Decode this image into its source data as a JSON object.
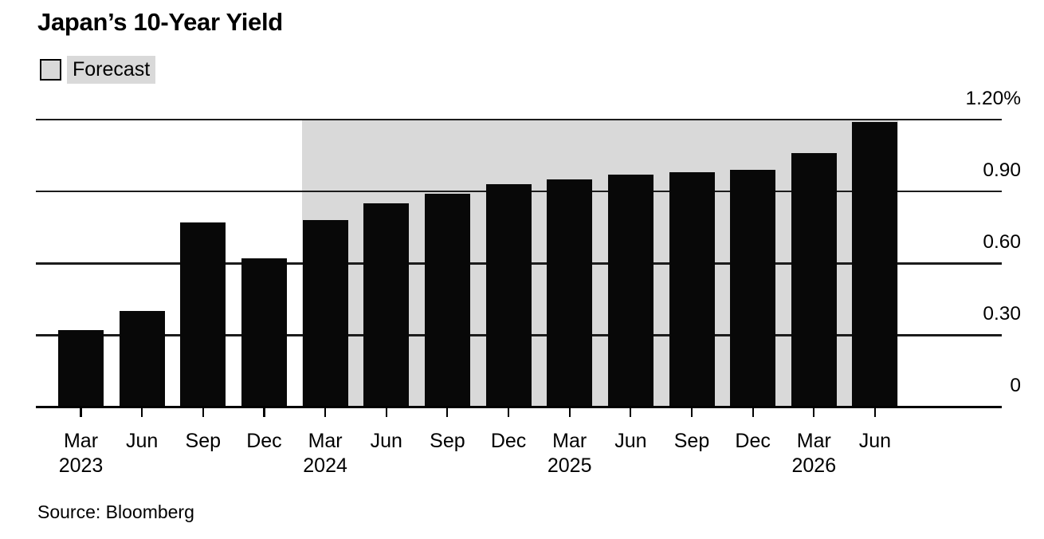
{
  "header": {
    "title": "Japan’s 10-Year Yield"
  },
  "legend": {
    "label": "Forecast",
    "swatch_color": "#d9d9d9"
  },
  "footer": {
    "source": "Source: Bloomberg"
  },
  "chart_data": {
    "type": "bar",
    "title": "Japan’s 10-Year Yield",
    "unit": "%",
    "categories": [
      "Mar 2023",
      "Jun 2023",
      "Sep 2023",
      "Dec 2023",
      "Mar 2024",
      "Jun 2024",
      "Sep 2024",
      "Dec 2024",
      "Mar 2025",
      "Jun 2025",
      "Sep 2025",
      "Dec 2025",
      "Mar 2026",
      "Jun 2026"
    ],
    "month_labels": [
      "Mar",
      "Jun",
      "Sep",
      "Dec",
      "Mar",
      "Jun",
      "Sep",
      "Dec",
      "Mar",
      "Jun",
      "Sep",
      "Dec",
      "Mar",
      "Jun"
    ],
    "year_labels": [
      {
        "at_index": 0,
        "label": "2023"
      },
      {
        "at_index": 4,
        "label": "2024"
      },
      {
        "at_index": 8,
        "label": "2025"
      },
      {
        "at_index": 12,
        "label": "2026"
      }
    ],
    "values": [
      0.32,
      0.4,
      0.77,
      0.62,
      0.78,
      0.85,
      0.89,
      0.93,
      0.95,
      0.97,
      0.98,
      0.99,
      1.06,
      1.19
    ],
    "forecast": {
      "label": "Forecast",
      "start_index": 4,
      "end_index": 13,
      "from_category": "Mar 2024",
      "to_category": "Jun 2026",
      "band_color": "#d9d9d9"
    },
    "yticks": [
      {
        "value": 0,
        "label": "0"
      },
      {
        "value": 0.3,
        "label": "0.30"
      },
      {
        "value": 0.6,
        "label": "0.60"
      },
      {
        "value": 0.9,
        "label": "0.90"
      },
      {
        "value": 1.2,
        "label": "1.20%"
      }
    ],
    "ylim": [
      0,
      1.2
    ],
    "bar_color": "#080808",
    "gridline_color": "#1c1c1c",
    "grid": true,
    "axis_labels_side": "right",
    "legend_position": "top-left"
  }
}
